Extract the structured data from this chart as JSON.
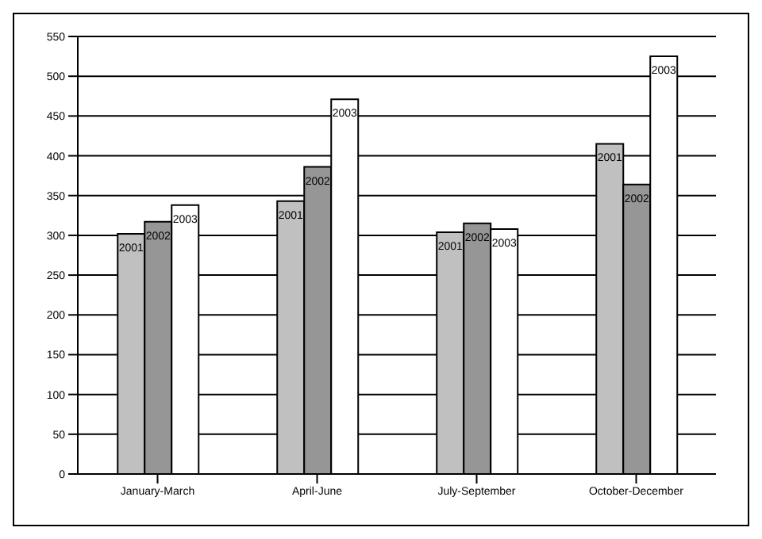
{
  "chart_data": {
    "type": "bar",
    "categories": [
      "January-March",
      "April-June",
      "July-September",
      "October-December"
    ],
    "series": [
      {
        "name": "2001",
        "color": "#c0c0c0",
        "values": [
          302,
          343,
          304,
          415
        ]
      },
      {
        "name": "2002",
        "color": "#969696",
        "values": [
          317,
          386,
          315,
          364
        ]
      },
      {
        "name": "2003",
        "color": "#ffffff",
        "values": [
          338,
          471,
          308,
          525
        ]
      }
    ],
    "ylim": [
      0,
      550
    ],
    "yticks": [
      0,
      50,
      100,
      150,
      200,
      250,
      300,
      350,
      400,
      450,
      500,
      550
    ],
    "grid": "y",
    "legend": false
  }
}
